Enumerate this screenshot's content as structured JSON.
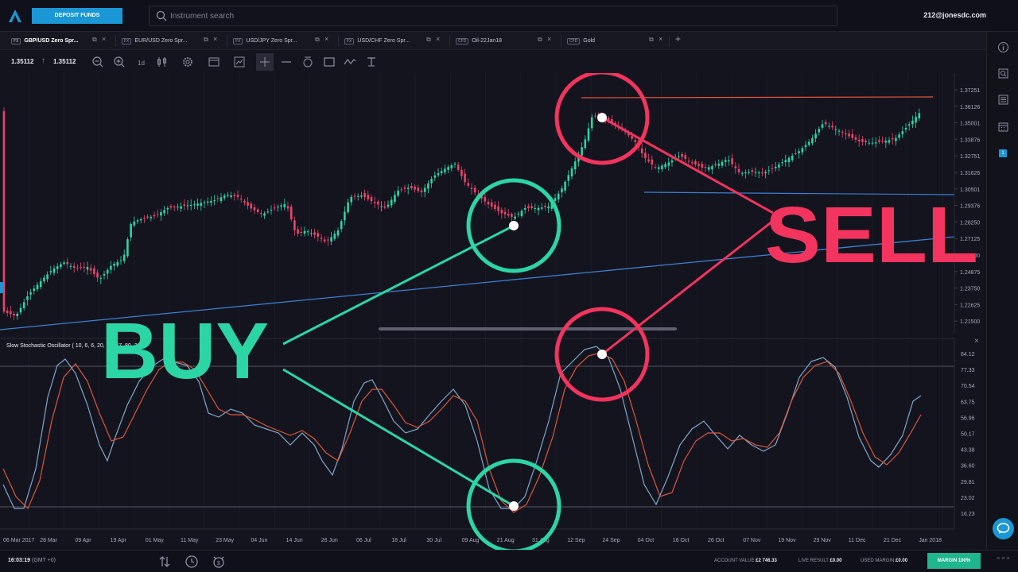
{
  "header": {
    "deposit_label": "DEPOSIT FUNDS",
    "search_placeholder": "Instrument search",
    "user_email": "212@jonesdc.com"
  },
  "tabs": [
    {
      "tag": "FX",
      "label": "GBP/USD Zero Spr...",
      "active": true
    },
    {
      "tag": "FX",
      "label": "EUR/USD Zero Spr...",
      "active": false
    },
    {
      "tag": "FX",
      "label": "USD/JPY Zero Spr...",
      "active": false
    },
    {
      "tag": "FX",
      "label": "USD/CHF Zero Spr...",
      "active": false
    },
    {
      "tag": "CFD",
      "label": "Oil-22Jan18",
      "active": false
    },
    {
      "tag": "CFD",
      "label": "Gold",
      "active": false
    }
  ],
  "toolbar": {
    "bid": "1.35112",
    "ask": "1.35112",
    "tools": [
      "zoom-out-icon",
      "zoom-in-icon",
      "timeframe-icon",
      "candle-type-icon",
      "settings-icon",
      "template-icon",
      "indicator-icon",
      "crosshair-icon",
      "line-icon",
      "fibonacci-icon",
      "rectangle-icon",
      "wave-icon",
      "text-tool-icon"
    ]
  },
  "price_axis": [
    "1.37251",
    "1.36126",
    "1.35001",
    "1.33876",
    "1.32751",
    "1.31626",
    "1.30501",
    "1.29376",
    "1.28250",
    "1.27125",
    "1.26000",
    "1.24875",
    "1.23750",
    "1.22625",
    "1.21500"
  ],
  "oscillator": {
    "label": "Slow Stochastic Oscillator ( 10, 6, 6, 20, 20, 47, 80, 20",
    "axis": [
      "84.12",
      "77.33",
      "70.54",
      "63.75",
      "56.96",
      "50.17",
      "43.38",
      "36.60",
      "29.81",
      "23.02",
      "16.23"
    ]
  },
  "date_axis": [
    "06 Mar 2017",
    "28 Mar",
    "09 Apr",
    "19 Apr",
    "01 May",
    "11 May",
    "23 May",
    "04 Jun",
    "14 Jun",
    "26 Jun",
    "06 Jul",
    "18 Jul",
    "30 Jul",
    "09 Aug",
    "21 Aug",
    "31 Aug",
    "12 Sep",
    "24 Sep",
    "04 Oct",
    "16 Oct",
    "26 Oct",
    "07 Nov",
    "19 Nov",
    "29 Nov",
    "11 Dec",
    "21 Dec",
    "Jan 2018"
  ],
  "annotations": {
    "buy": "BUY",
    "sell": "SELL"
  },
  "footer": {
    "time": "16:03:19",
    "timezone": "(GMT +0)",
    "account_value_label": "ACCOUNT VALUE",
    "account_value": "£2 746.33",
    "live_result_label": "LIVE RESULT",
    "live_result": "£0.00",
    "used_margin_label": "USED MARGIN",
    "used_margin": "£0.00",
    "margin_button": "MARGIN 100%"
  },
  "colors": {
    "accent": "#1a97d4",
    "buy": "#2bd6a4",
    "sell": "#f2345e",
    "up_candle": "#2bd6a4",
    "down_candle": "#e8456a",
    "trendline": "#3d7fd1",
    "resistance": "#e8573a"
  }
}
